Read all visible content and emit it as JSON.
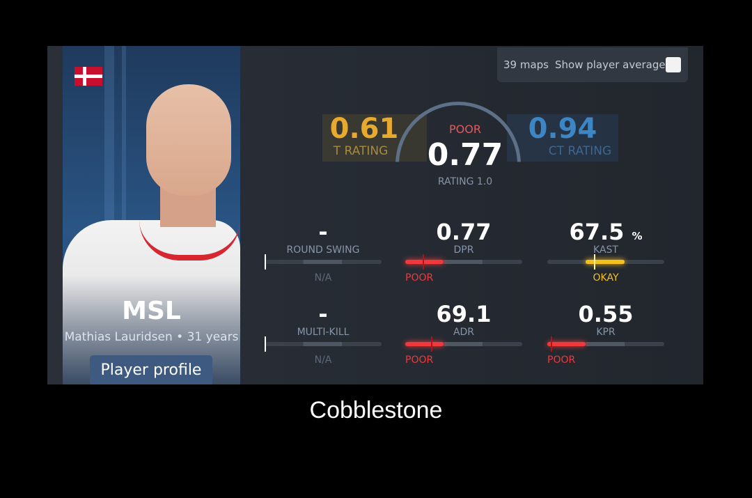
{
  "player": {
    "nickname": "MSL",
    "name": "Mathias Lauridsen",
    "age": "• 31 years",
    "profile_button": "Player profile",
    "country_flag": "denmark-flag"
  },
  "filter": {
    "maps": "39 maps",
    "show_average": "Show player average",
    "show_average_checked": false
  },
  "ratings": {
    "t": {
      "value": "0.61",
      "label": "T RATING",
      "color": "#e8aa2e"
    },
    "overall": {
      "grade": "POOR",
      "value": "0.77",
      "label": "RATING 1.0"
    },
    "ct": {
      "value": "0.94",
      "label": "CT RATING",
      "color": "#3d86c6"
    }
  },
  "stats": [
    {
      "value": "-",
      "unit": "",
      "label": "ROUND SWING",
      "grade": "N/A",
      "color": "#8795a8",
      "fill_start": 0,
      "fill_end": 0,
      "marker": 0
    },
    {
      "value": "0.77",
      "unit": "",
      "label": "DPR",
      "grade": "POOR",
      "color": "#f0393c",
      "fill_start": 0,
      "fill_end": 0.33,
      "marker": 0.15
    },
    {
      "value": "67.5",
      "unit": "%",
      "label": "KAST",
      "grade": "OKAY",
      "color": "#f3c01e",
      "fill_start": 0.33,
      "fill_end": 0.66,
      "marker": 0.4
    },
    {
      "value": "-",
      "unit": "",
      "label": "MULTI-KILL",
      "grade": "N/A",
      "color": "#8795a8",
      "fill_start": 0,
      "fill_end": 0,
      "marker": 0
    },
    {
      "value": "69.1",
      "unit": "",
      "label": "ADR",
      "grade": "POOR",
      "color": "#f0393c",
      "fill_start": 0,
      "fill_end": 0.33,
      "marker": 0.22
    },
    {
      "value": "0.55",
      "unit": "",
      "label": "KPR",
      "grade": "POOR",
      "color": "#f0393c",
      "fill_start": 0,
      "fill_end": 0.33,
      "marker": 0.03
    }
  ],
  "caption": "Cobblestone"
}
